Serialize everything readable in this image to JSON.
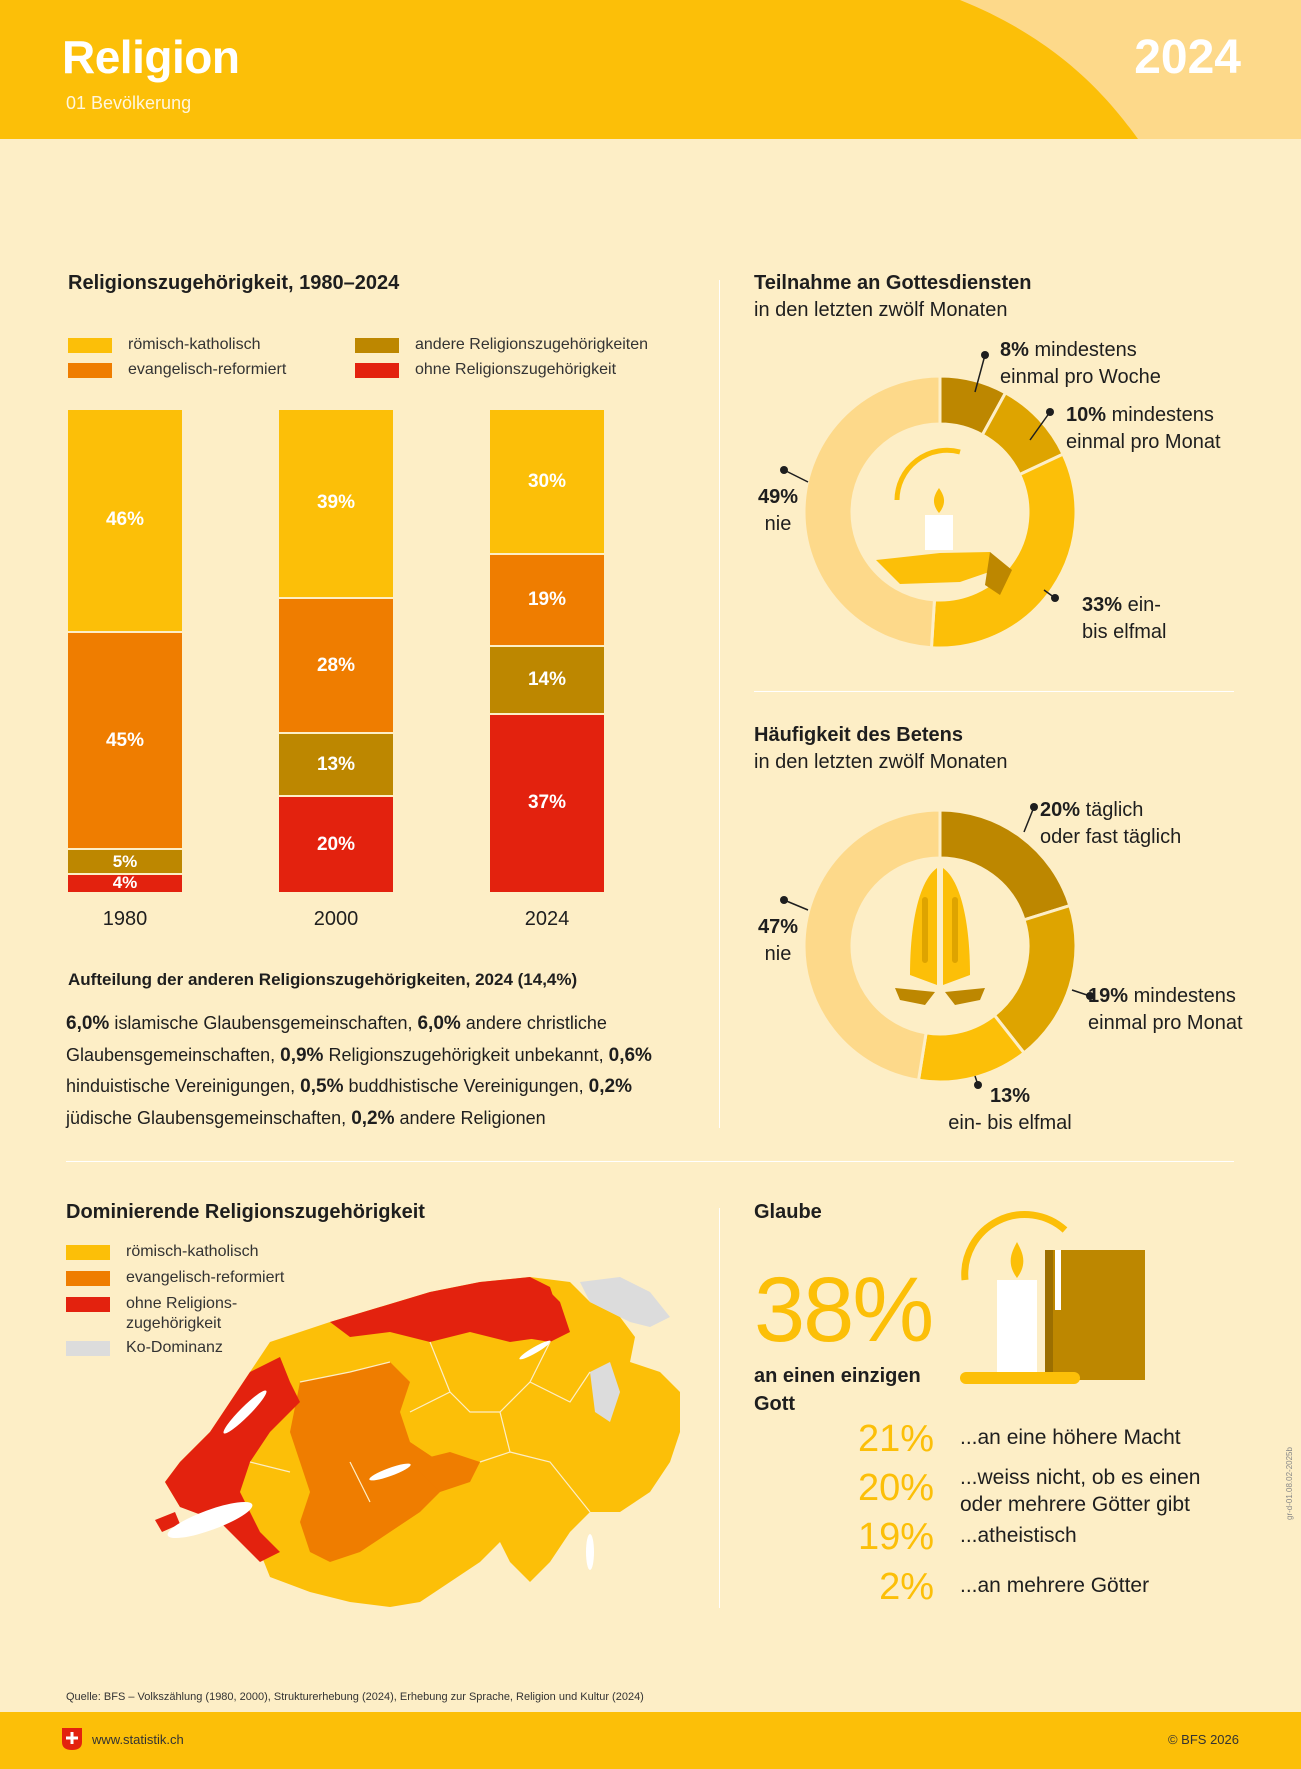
{
  "header": {
    "title": "Religion",
    "subtitle": "01 Bevölkerung",
    "year": "2024"
  },
  "colors": {
    "katholisch": "#fcbf08",
    "reformiert": "#ef7d00",
    "andere": "#bd8700",
    "ohne": "#e3220e",
    "ko": "#dcdcdc",
    "light": "#fdd98a",
    "mid": "#dea400"
  },
  "religion_chart": {
    "title": "Religionszugehörigkeit, 1980–2024",
    "legend": [
      "römisch-katholisch",
      "evangelisch-reformiert",
      "andere Religionszugehörigkeiten",
      "ohne Religionszugehörigkeit"
    ]
  },
  "chart_data": [
    {
      "type": "bar",
      "stacked": true,
      "title": "Religionszugehörigkeit, 1980–2024",
      "categories": [
        "1980",
        "2000",
        "2024"
      ],
      "series": [
        {
          "name": "römisch-katholisch",
          "values": [
            46,
            39,
            30
          ],
          "labels": [
            "46%",
            "39%",
            "30%"
          ]
        },
        {
          "name": "evangelisch-reformiert",
          "values": [
            45,
            28,
            19
          ],
          "labels": [
            "45%",
            "28%",
            "19%"
          ]
        },
        {
          "name": "andere Religionszugehörigkeiten",
          "values": [
            5,
            13,
            14
          ],
          "labels": [
            "5%",
            "13%",
            "14%"
          ]
        },
        {
          "name": "ohne Religionszugehörigkeit",
          "values": [
            4,
            20,
            37
          ],
          "labels": [
            "4%",
            "20%",
            "37%"
          ]
        }
      ]
    },
    {
      "type": "pie",
      "donut": true,
      "title": "Teilnahme an Gottesdiensten",
      "subtitle": "in den letzten zwölf Monaten",
      "slices": [
        {
          "pct": "8%",
          "label_lines": [
            "mindestens",
            "einmal pro Woche"
          ],
          "value": 8
        },
        {
          "pct": "10%",
          "label_lines": [
            "mindestens",
            "einmal pro Monat"
          ],
          "value": 10
        },
        {
          "pct": "33%",
          "label_lines": [
            "ein-",
            "bis elfmal"
          ],
          "value": 33
        },
        {
          "pct": "49%",
          "label_lines": [
            "nie"
          ],
          "value": 49
        }
      ]
    },
    {
      "type": "pie",
      "donut": true,
      "title": "Häufigkeit des Betens",
      "subtitle": "in den letzten zwölf Monaten",
      "slices": [
        {
          "pct": "20%",
          "label_lines": [
            "täglich",
            "oder fast täglich"
          ],
          "value": 20
        },
        {
          "pct": "19%",
          "label_lines": [
            "mindestens",
            "einmal pro Monat"
          ],
          "value": 19
        },
        {
          "pct": "13%",
          "label_lines": [
            "ein- bis elfmal"
          ],
          "value": 13
        },
        {
          "pct": "47%",
          "label_lines": [
            "nie"
          ],
          "value": 47
        }
      ]
    }
  ],
  "other_breakdown": {
    "title": "Aufteilung der anderen Religionszugehörigkeiten, 2024 (14,4%)",
    "items": [
      {
        "pct": "6,0%",
        "label": "islamische Glaubensgemeinschaften,"
      },
      {
        "pct": "6,0%",
        "label": "andere christliche Glaubensgemeinschaften,"
      },
      {
        "pct": "0,9%",
        "label": "Religionszugehörigkeit unbekannt,"
      },
      {
        "pct": "0,6%",
        "label": "hinduistische Vereinigungen,"
      },
      {
        "pct": "0,5%",
        "label": "buddhistische Vereinigungen,"
      },
      {
        "pct": "0,2%",
        "label": "jüdische Glaubensgemeinschaften,"
      },
      {
        "pct": "0,2%",
        "label": "andere Religionen"
      }
    ]
  },
  "map": {
    "title": "Dominierende Religionszugehörigkeit",
    "legend": [
      "römisch-katholisch",
      "evangelisch-reformiert",
      "ohne Religions-zugehörigkeit",
      "Ko-Dominanz"
    ]
  },
  "belief": {
    "title": "Glaube",
    "big_pct": "38%",
    "big_label": "an einen einzigen Gott",
    "rows": [
      {
        "pct": "21%",
        "label": "...an eine höhere Macht"
      },
      {
        "pct": "20%",
        "label": "...weiss nicht, ob es einen oder mehrere Götter gibt"
      },
      {
        "pct": "19%",
        "label": "...atheistisch"
      },
      {
        "pct": "2%",
        "label": "...an mehrere Götter"
      }
    ]
  },
  "footer": {
    "source": "Quelle: BFS – Volkszählung (1980, 2000), Strukturerhebung (2024), Erhebung zur Sprache, Religion und Kultur (2024)",
    "url": "www.statistik.ch",
    "copyright": "© BFS 2026",
    "code": "gr-d-01.08.02-2025b"
  }
}
